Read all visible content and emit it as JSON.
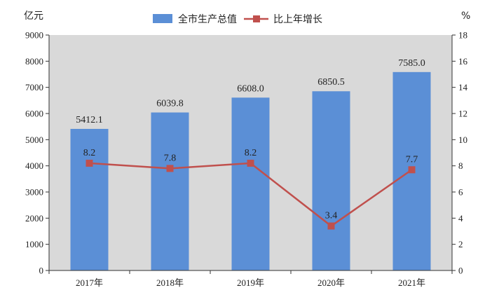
{
  "chart_data": {
    "type": "bar",
    "categories": [
      "2017年",
      "2018年",
      "2019年",
      "2020年",
      "2021年"
    ],
    "series": [
      {
        "name": "全市生产总值",
        "type": "bar",
        "axis": "left",
        "values": [
          5412.1,
          6039.8,
          6608.0,
          6850.5,
          7585.0
        ],
        "labels": [
          "5412.1",
          "6039.8",
          "6608.0",
          "6850.5",
          "7585.0"
        ],
        "color": "#5b8fd6"
      },
      {
        "name": "比上年增长",
        "type": "line",
        "axis": "right",
        "values": [
          8.2,
          7.8,
          8.2,
          3.4,
          7.7
        ],
        "labels": [
          "8.2",
          "7.8",
          "8.2",
          "3.4",
          "7.7"
        ],
        "color": "#c0504d"
      }
    ],
    "ylabel_left": "亿元",
    "ylabel_right": "%",
    "ylim_left": [
      0,
      9000
    ],
    "yticks_left": [
      "0",
      "1000",
      "2000",
      "3000",
      "4000",
      "5000",
      "6000",
      "7000",
      "8000",
      "9000"
    ],
    "ylim_right": [
      0,
      18
    ],
    "yticks_right": [
      "0",
      "2",
      "4",
      "6",
      "8",
      "10",
      "12",
      "14",
      "16",
      "18"
    ],
    "grid": false,
    "plot_background": "#d9d9d9",
    "legend_position": "top-center"
  }
}
